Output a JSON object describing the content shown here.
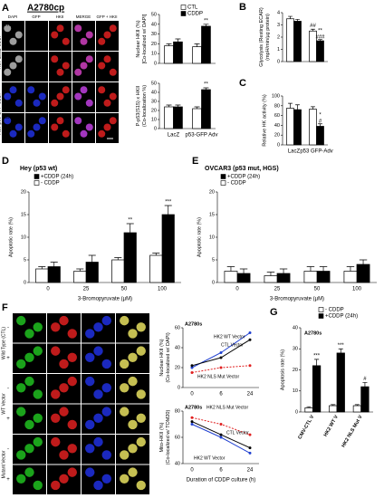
{
  "panel_labels": [
    "A",
    "B",
    "C",
    "D",
    "E",
    "F",
    "G"
  ],
  "panel_a": {
    "title": "A2780cp",
    "columns": [
      "DAPI",
      "GFP",
      "HKII",
      "MERGE",
      "GFP + HKII"
    ],
    "groups": [
      "Adv-LacZ-CDDP",
      "Adv-p53-GFP-CDDP"
    ],
    "rows": [
      "CTL",
      "CDDP",
      "CTL",
      "CDDP"
    ]
  },
  "panel_f": {
    "groups": [
      "Wild Type (CTL)",
      "WT Vector",
      "Mutant Vector"
    ],
    "rows": [
      "-",
      "+",
      "-",
      "+",
      "-",
      "+"
    ]
  },
  "chart_data": [
    {
      "type": "bar",
      "ylabel": [
        "Nuclear HKII (%)",
        "[Co-localized w/ DAPI]"
      ],
      "categories": [
        null,
        null
      ],
      "series": [
        {
          "name": "CTL",
          "color": "#ffffff",
          "values": [
            18,
            17
          ],
          "errors": [
            2,
            3
          ]
        },
        {
          "name": "CDDP",
          "color": "#000000",
          "values": [
            22,
            38
          ],
          "errors": [
            3,
            2
          ]
        }
      ],
      "ylim": [
        0,
        50
      ],
      "yticks": [
        0,
        10,
        20,
        30,
        40,
        50
      ],
      "annotations": [
        "**"
      ]
    },
    {
      "type": "bar",
      "ylabel": [
        "P-p53(S15) x HKII",
        "(Co-localization %)"
      ],
      "categories": [
        "LacZ",
        "p53-GFP Adv"
      ],
      "series": [
        {
          "color": "#ffffff",
          "values": [
            24,
            22
          ],
          "errors": [
            2,
            2
          ]
        },
        {
          "color": "#000000",
          "values": [
            24,
            43
          ],
          "errors": [
            2,
            2
          ]
        }
      ],
      "ylim": [
        0,
        50
      ],
      "yticks": [
        0,
        10,
        20,
        30,
        40,
        50
      ],
      "annotations": [
        "**"
      ]
    },
    {
      "type": "bar",
      "ylabel": [
        "Glycolysis (Resting ECAR)",
        "(mpH/min/µg protein)"
      ],
      "categories": [
        null,
        null
      ],
      "series": [
        {
          "color": "#ffffff",
          "values": [
            3.5,
            2.5
          ],
          "errors": [
            0.2,
            0.15
          ]
        },
        {
          "color": "#000000",
          "values": [
            3.3,
            1.7
          ],
          "errors": [
            0.15,
            0.1
          ]
        }
      ],
      "ylim": [
        0,
        4
      ],
      "yticks": [
        0,
        1,
        2,
        3,
        4
      ],
      "annotations": [
        "##",
        "**",
        "###"
      ]
    },
    {
      "type": "bar",
      "ylabel": [
        "Relative HK activity (%)"
      ],
      "categories": [
        "LacZ",
        "p53 GFP-Adv"
      ],
      "series": [
        {
          "color": "#ffffff",
          "values": [
            75,
            73
          ],
          "errors": [
            10,
            5
          ]
        },
        {
          "color": "#000000",
          "values": [
            72,
            38
          ],
          "errors": [
            10,
            5
          ]
        }
      ],
      "ylim": [
        0,
        100
      ],
      "yticks": [
        0,
        20,
        40,
        60,
        80,
        100
      ],
      "annotations": [
        "*",
        "#"
      ]
    },
    {
      "type": "bar",
      "title": "Hey (p53 wt)",
      "ylabel": [
        "Apoptotic rate (%)"
      ],
      "xlabel": "3-Bromopyruvate (µM)",
      "categories": [
        "0",
        "25",
        "50",
        "100"
      ],
      "series": [
        {
          "name": "+CDDP (24h)",
          "color": "#000000",
          "values": [
            3.5,
            4.5,
            11,
            15
          ],
          "errors": [
            1,
            1.5,
            2,
            2
          ]
        },
        {
          "name": "- CDDP",
          "color": "#ffffff",
          "values": [
            3,
            2.5,
            5,
            6
          ],
          "errors": [
            0.5,
            0.5,
            0.5,
            0.5
          ]
        }
      ],
      "ylim": [
        0,
        20
      ],
      "yticks": [
        0,
        5,
        10,
        15,
        20
      ],
      "annotations": [
        "**",
        "***"
      ]
    },
    {
      "type": "bar",
      "title": "OVCAR3 (p53 mut, HGS)",
      "ylabel": [
        "Apoptotic rate (%)"
      ],
      "xlabel": "3-Bromopyruvate (µM)",
      "categories": [
        "0",
        "25",
        "50",
        "100"
      ],
      "series": [
        {
          "name": "+CDDP (24h)",
          "color": "#000000",
          "values": [
            2,
            2,
            2.5,
            4
          ],
          "errors": [
            1,
            1,
            1,
            1
          ]
        },
        {
          "name": "- CDDP",
          "color": "#ffffff",
          "values": [
            2.5,
            1.5,
            2.5,
            2.5
          ],
          "errors": [
            1,
            0.8,
            1,
            1
          ]
        }
      ],
      "ylim": [
        0,
        20
      ],
      "yticks": [
        0,
        5,
        10,
        15,
        20
      ]
    },
    {
      "type": "line",
      "title": "A2780s",
      "ylabel": [
        "Nuclear HKII (%)",
        "(Co-localized w/ DAPI)"
      ],
      "categories": [
        "0",
        "6",
        "24"
      ],
      "series": [
        {
          "name": "HK2 WT Vector",
          "color": "#1f3fd0",
          "values": [
            20,
            35,
            55
          ]
        },
        {
          "name": "CTL Vector",
          "color": "#000000",
          "values": [
            22,
            30,
            48
          ]
        },
        {
          "name": "HK2 NLS Mut Vector",
          "color": "#e02020",
          "dashed": true,
          "values": [
            15,
            20,
            22
          ]
        }
      ],
      "ylim": [
        0,
        60
      ],
      "yticks": [
        0,
        20,
        40,
        60
      ]
    },
    {
      "type": "line",
      "title": "A2780s",
      "ylabel": [
        "Mito-HKII (%)",
        "(Co-localized w/ TOM20)"
      ],
      "xlabel": "Duration of CDDP culture (h)",
      "categories": [
        "0",
        "6",
        "24"
      ],
      "series": [
        {
          "name": "HK2 NLS Mut Vector",
          "color": "#e02020",
          "dashed": true,
          "values": [
            75,
            70,
            62
          ]
        },
        {
          "name": "CTL Vector",
          "color": "#000000",
          "values": [
            72,
            62,
            52
          ]
        },
        {
          "name": "HK2 WT Vector",
          "color": "#1f3fd0",
          "values": [
            70,
            60,
            48
          ]
        }
      ],
      "ylim": [
        40,
        80
      ],
      "yticks": [
        40,
        60,
        80
      ]
    },
    {
      "type": "bar",
      "title": "A2780s",
      "ylabel": [
        "Apoptosis rate (%)"
      ],
      "categories": [
        "CMV-CTL V",
        "HK2 WT V",
        "HK2 NLS Mut V"
      ],
      "series": [
        {
          "name": "- CDDP",
          "color": "#ffffff",
          "values": [
            2,
            3,
            3
          ],
          "errors": [
            0.5,
            0.5,
            0.5
          ]
        },
        {
          "name": "+CDDP (24h)",
          "color": "#000000",
          "values": [
            22,
            28,
            12
          ],
          "errors": [
            3,
            2,
            2
          ]
        }
      ],
      "ylim": [
        0,
        40
      ],
      "yticks": [
        0,
        10,
        20,
        30,
        40
      ],
      "annotations": [
        "***",
        "***",
        "#"
      ]
    }
  ]
}
